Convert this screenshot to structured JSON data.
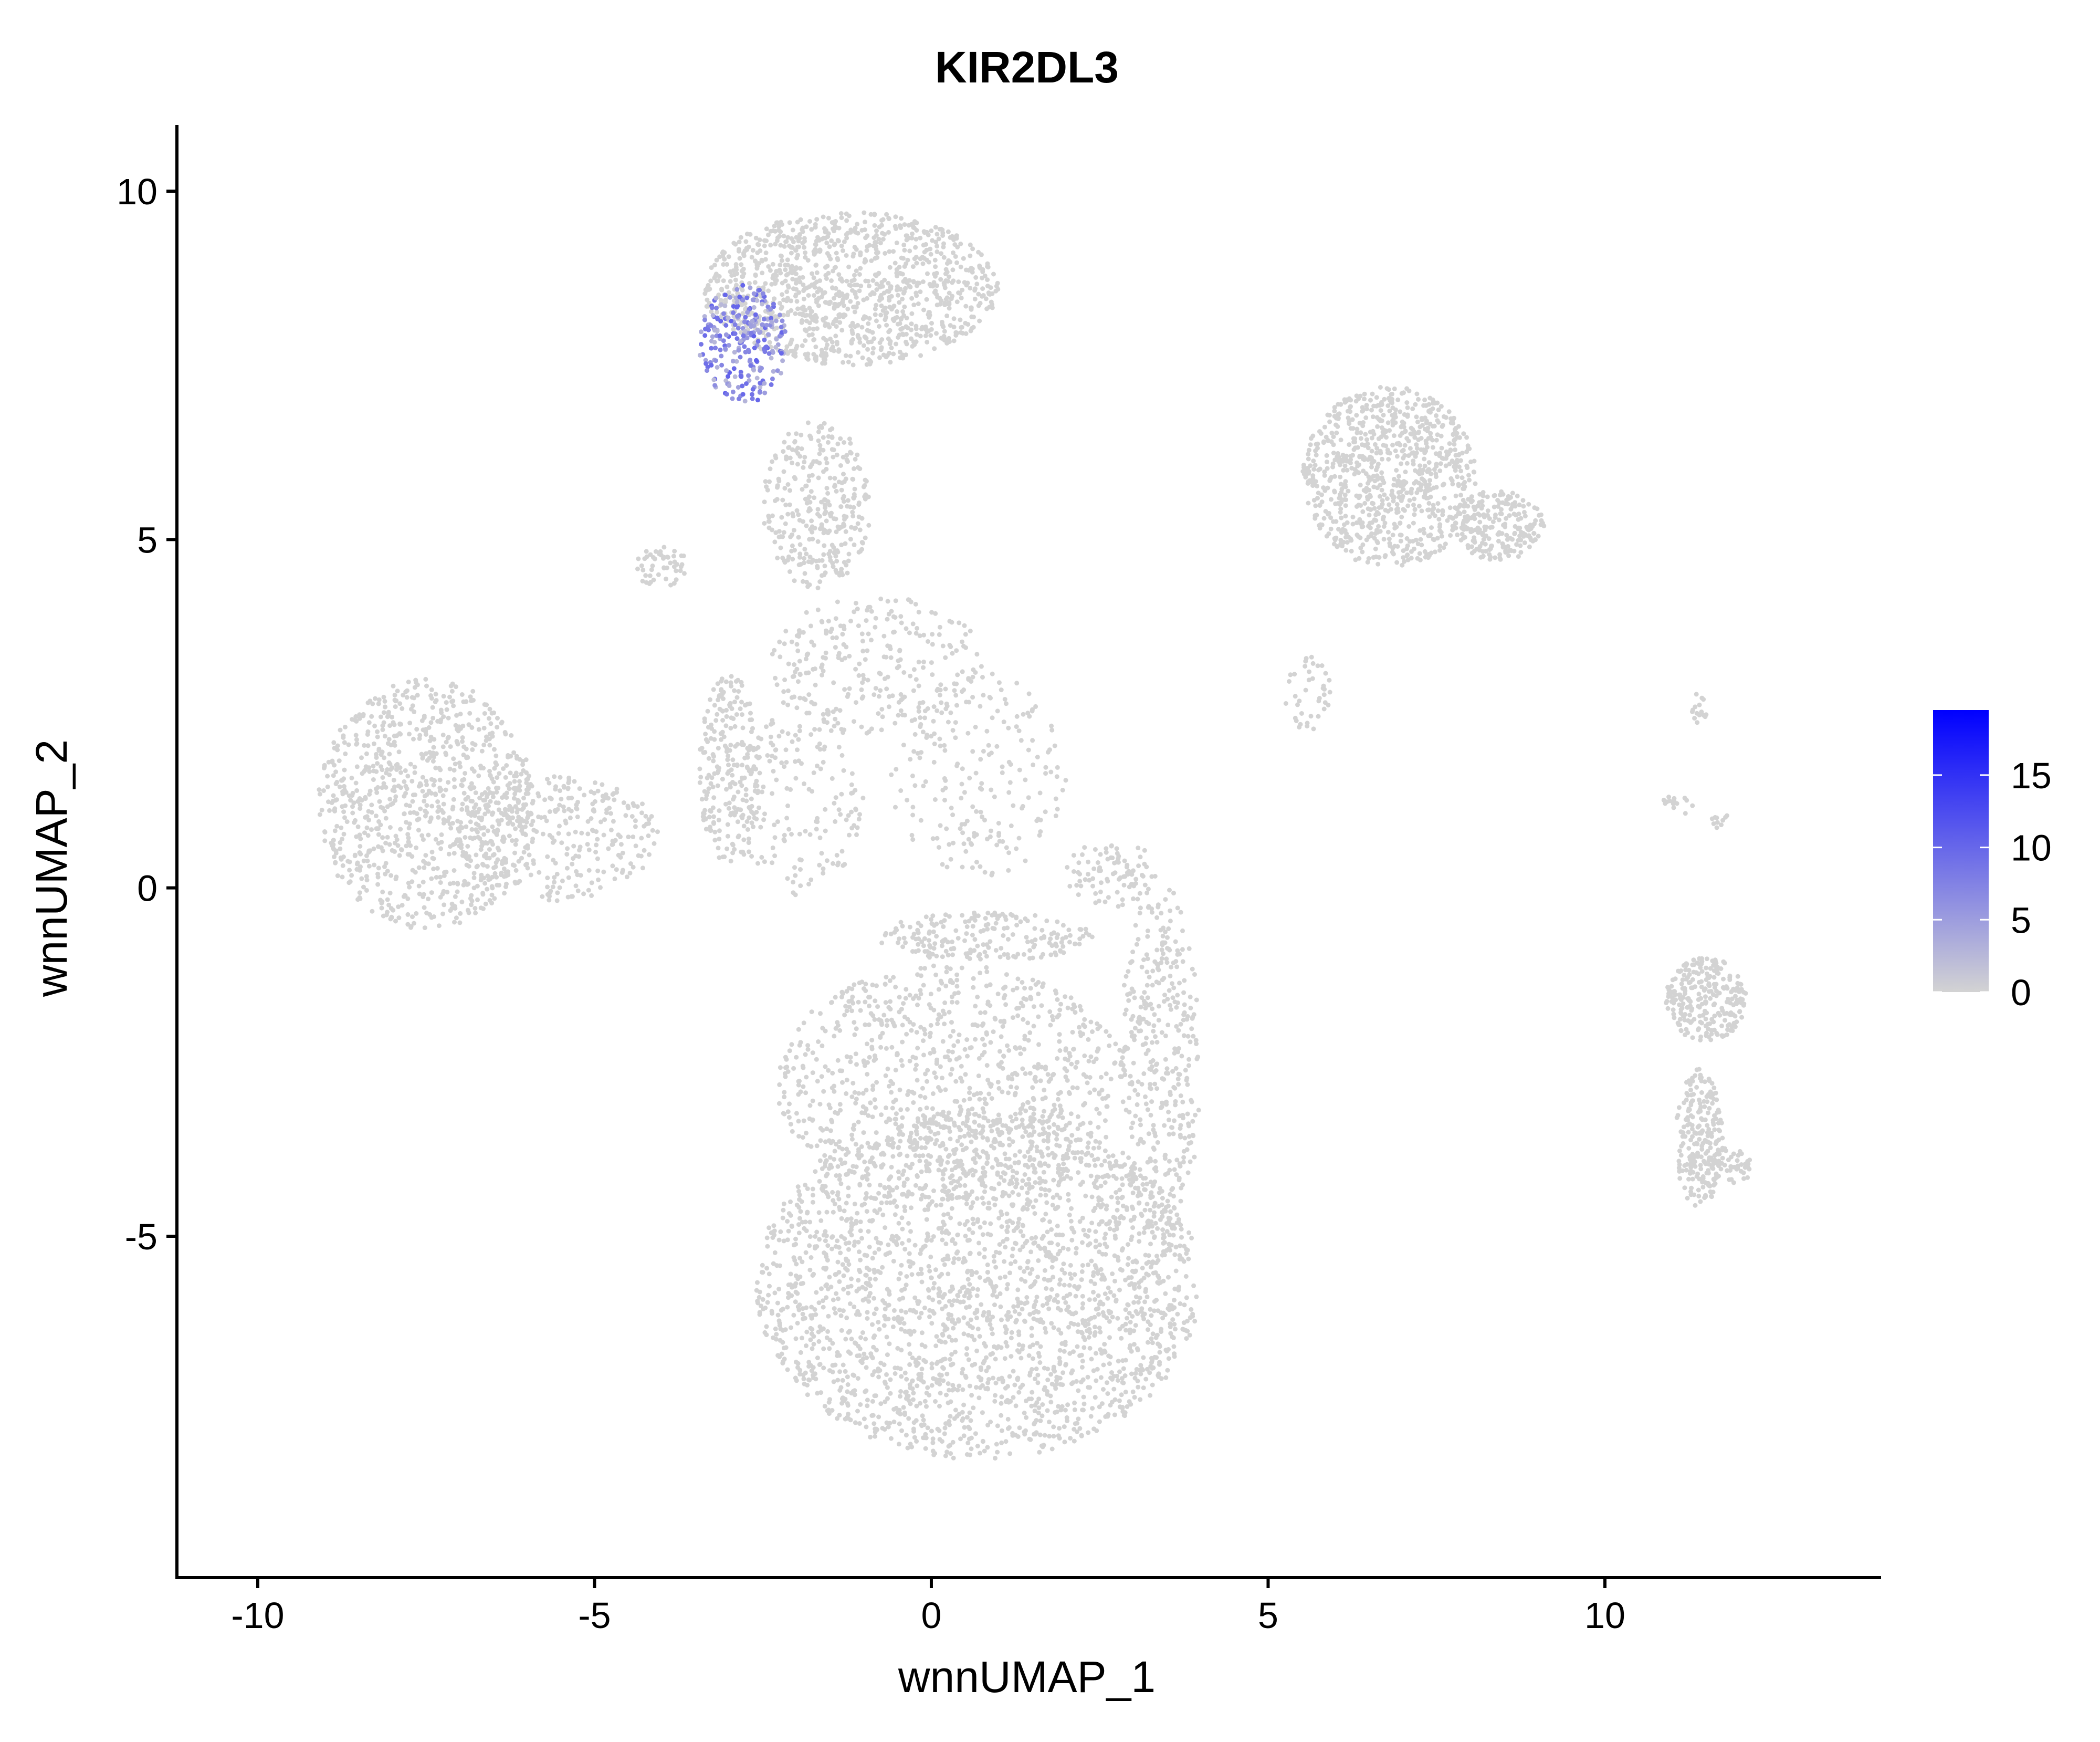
{
  "chart_data": {
    "type": "scatter",
    "title": "KIR2DL3",
    "xlabel": "wnnUMAP_1",
    "ylabel": "wnnUMAP_2",
    "xlim": [
      -11.2,
      14.1
    ],
    "ylim": [
      -9.9,
      10.95
    ],
    "x_ticks": [
      -10,
      -5,
      0,
      5,
      10
    ],
    "x_tick_labels": [
      "-10",
      "-5",
      "0",
      "5",
      "10"
    ],
    "y_ticks": [
      -5,
      0,
      5,
      10
    ],
    "y_tick_labels": [
      "-5",
      "0",
      "5",
      "10"
    ],
    "grid": false,
    "legend_position": "right",
    "color_scale": {
      "min": 0,
      "max": 19.5,
      "low_color": "#d3d3d3",
      "high_color": "#0000ff",
      "ticks": [
        0,
        5,
        10,
        15
      ],
      "tick_labels": [
        "0",
        "5",
        "10",
        "15"
      ]
    },
    "clusters": [
      {
        "cx": 0.7,
        "cy": -5.7,
        "rx": 3.3,
        "ry": 2.5,
        "n": 2400,
        "expr": 0
      },
      {
        "cx": 0.3,
        "cy": -2.8,
        "rx": 2.6,
        "ry": 1.7,
        "n": 900,
        "expr": 0
      },
      {
        "cx": 3.4,
        "cy": -2.5,
        "rx": 0.6,
        "ry": 2.6,
        "n": 380,
        "expr": 0
      },
      {
        "cx": 0.8,
        "cy": -0.7,
        "rx": 1.6,
        "ry": 0.35,
        "n": 200,
        "expr": 0
      },
      {
        "cx": -7.5,
        "cy": 1.2,
        "rx": 1.6,
        "ry": 1.8,
        "n": 900,
        "expr": 0
      },
      {
        "cx": -5.6,
        "cy": 0.7,
        "rx": 1.6,
        "ry": 0.9,
        "n": 320,
        "expr": 0
      },
      {
        "cx": -3.0,
        "cy": 1.7,
        "rx": 0.45,
        "ry": 1.4,
        "n": 220,
        "expr": 0
      },
      {
        "cx": -4.0,
        "cy": 4.6,
        "rx": 0.4,
        "ry": 0.3,
        "n": 50,
        "expr": 0
      },
      {
        "cx": -1.2,
        "cy": 8.6,
        "rx": 2.2,
        "ry": 1.1,
        "n": 1100,
        "expr": 0
      },
      {
        "cx": -1.7,
        "cy": 5.5,
        "rx": 0.8,
        "ry": 1.2,
        "n": 320,
        "expr": 0
      },
      {
        "cx": -2.8,
        "cy": 7.8,
        "rx": 0.65,
        "ry": 0.85,
        "n": 260,
        "expr": 7
      },
      {
        "cx": -0.8,
        "cy": 3.2,
        "rx": 1.6,
        "ry": 1.0,
        "n": 260,
        "expr": 0
      },
      {
        "cx": 0.7,
        "cy": 1.6,
        "rx": 1.3,
        "ry": 1.5,
        "n": 200,
        "expr": 0
      },
      {
        "cx": -2.0,
        "cy": 1.3,
        "rx": 1.0,
        "ry": 1.4,
        "n": 180,
        "expr": 0
      },
      {
        "cx": 2.7,
        "cy": 0.2,
        "rx": 0.7,
        "ry": 0.5,
        "n": 90,
        "expr": 0
      },
      {
        "cx": 6.8,
        "cy": 5.9,
        "rx": 1.3,
        "ry": 1.3,
        "n": 850,
        "expr": 0
      },
      {
        "cx": 8.4,
        "cy": 5.2,
        "rx": 0.7,
        "ry": 0.5,
        "n": 220,
        "expr": 0
      },
      {
        "cx": 5.6,
        "cy": 2.8,
        "rx": 0.35,
        "ry": 0.6,
        "n": 40,
        "expr": 0
      },
      {
        "cx": 11.5,
        "cy": -1.6,
        "rx": 0.6,
        "ry": 0.6,
        "n": 260,
        "expr": 0
      },
      {
        "cx": 11.4,
        "cy": -3.6,
        "rx": 0.35,
        "ry": 1.0,
        "n": 200,
        "expr": 0
      },
      {
        "cx": 11.7,
        "cy": -4.0,
        "rx": 0.5,
        "ry": 0.3,
        "n": 80,
        "expr": 0
      },
      {
        "cx": 11.4,
        "cy": 2.6,
        "rx": 0.12,
        "ry": 0.25,
        "n": 15,
        "expr": 0
      },
      {
        "cx": 11.1,
        "cy": 1.2,
        "rx": 0.3,
        "ry": 0.15,
        "n": 15,
        "expr": 0
      },
      {
        "cx": 11.7,
        "cy": 1.0,
        "rx": 0.12,
        "ry": 0.15,
        "n": 10,
        "expr": 0
      }
    ]
  }
}
